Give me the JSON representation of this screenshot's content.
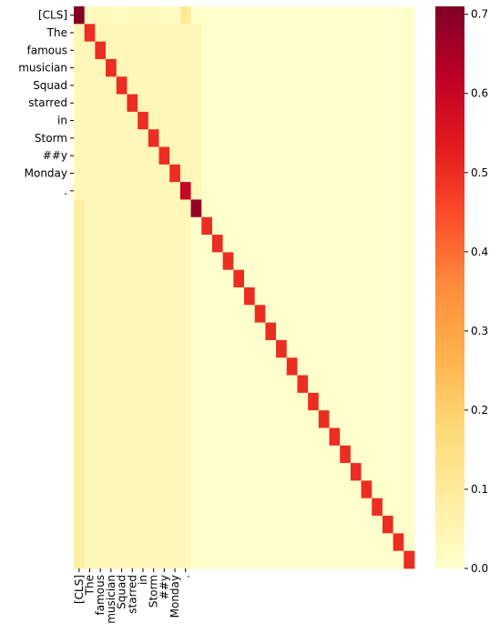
{
  "chart_data": {
    "type": "heatmap",
    "title": "",
    "xlabel": "",
    "ylabel": "",
    "tokens": [
      "[CLS]",
      "The",
      "famous",
      "musician",
      "Squad",
      "starred",
      "in",
      "Storm",
      "##y",
      "Monday",
      "."
    ],
    "n_positions": 32,
    "value_range": [
      0.0,
      0.71
    ],
    "colormap": "YlOrRd",
    "colorbar": {
      "ticks": [
        0.0,
        0.1,
        0.2,
        0.3,
        0.4,
        0.5,
        0.6,
        0.7
      ],
      "tick_labels": [
        "0.0",
        "0.1",
        "0.2",
        "0.3",
        "0.4",
        "0.5",
        "0.6",
        "0.7"
      ]
    },
    "diagonal_values": [
      0.7,
      0.5,
      0.5,
      0.5,
      0.5,
      0.5,
      0.5,
      0.5,
      0.5,
      0.5,
      0.6,
      0.68,
      0.5,
      0.5,
      0.5,
      0.5,
      0.5,
      0.5,
      0.5,
      0.5,
      0.5,
      0.5,
      0.5,
      0.5,
      0.5,
      0.5,
      0.5,
      0.5,
      0.5,
      0.5,
      0.5,
      0.5
    ],
    "row_0_values": [
      0.7,
      0.03,
      0.03,
      0.03,
      0.02,
      0.03,
      0.03,
      0.03,
      0.02,
      0.02,
      0.1,
      0.0
    ],
    "row_10_col_10": 0.6,
    "sentence_rows_offdiag": 0.04,
    "padding_rows_col_0": 0.08,
    "padding_rows_cols_1_10": 0.04,
    "padding_rows_cols_beyond_11": 0.0
  }
}
